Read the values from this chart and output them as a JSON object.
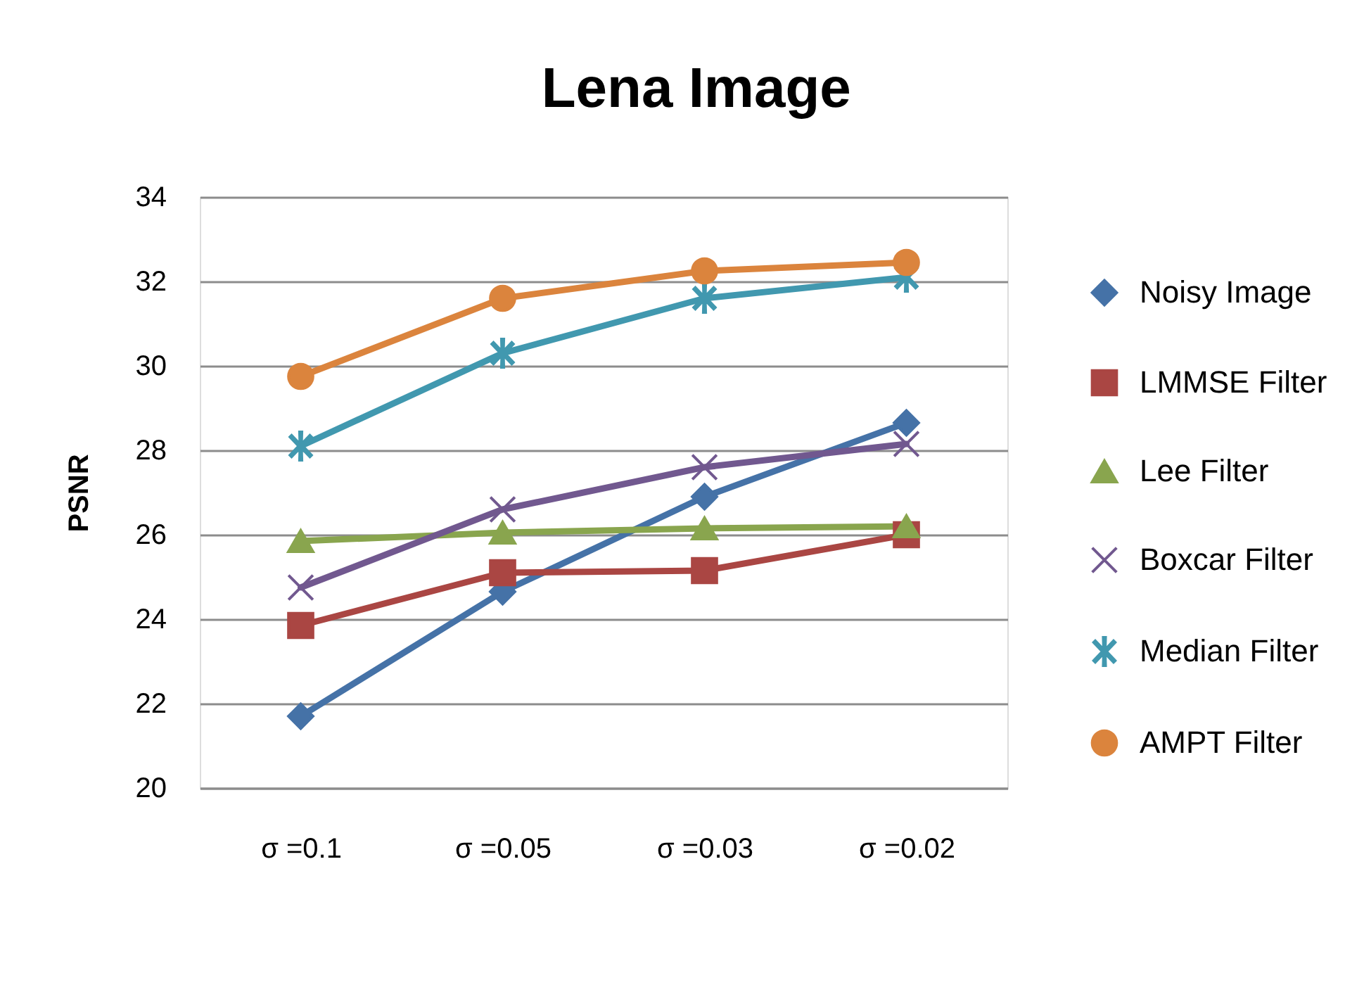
{
  "chart_data": {
    "type": "line",
    "title": "Lena Image",
    "ylabel": "PSNR",
    "categories": [
      "σ =0.1",
      "σ =0.05",
      "σ =0.03",
      "σ =0.02"
    ],
    "ylim": [
      20,
      34
    ],
    "yticks": [
      20,
      22,
      24,
      26,
      28,
      30,
      32,
      34
    ],
    "grid": "y",
    "legend": "right",
    "line_style": "solid",
    "series": [
      {
        "name": "Noisy Image",
        "color": "#4572a7",
        "marker": "diamond",
        "values": [
          21.7,
          24.65,
          26.9,
          28.65
        ]
      },
      {
        "name": "LMMSE Filter",
        "color": "#aa4643",
        "marker": "square",
        "values": [
          23.85,
          25.1,
          25.15,
          26.0
        ]
      },
      {
        "name": "Lee Filter",
        "color": "#89a54e",
        "marker": "triangle",
        "values": [
          25.85,
          26.05,
          26.15,
          26.2
        ]
      },
      {
        "name": "Boxcar Filter",
        "color": "#71588f",
        "marker": "cross",
        "values": [
          24.75,
          26.6,
          27.6,
          28.15
        ]
      },
      {
        "name": "Median Filter",
        "color": "#4198af",
        "marker": "star",
        "values": [
          28.1,
          30.3,
          31.6,
          32.1
        ]
      },
      {
        "name": "AMPT Filter",
        "color": "#db843d",
        "marker": "circle",
        "values": [
          29.75,
          31.6,
          32.25,
          32.45
        ]
      }
    ]
  }
}
